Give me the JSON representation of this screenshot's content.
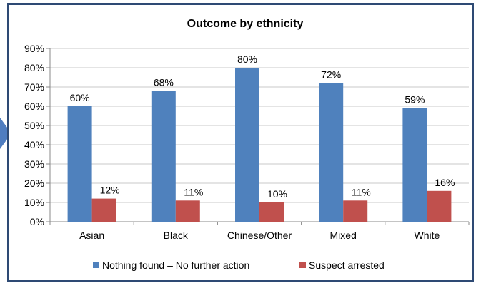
{
  "chart_data": {
    "type": "bar",
    "title": "Outcome by ethnicity",
    "xlabel": "",
    "ylabel": "",
    "categories": [
      "Asian",
      "Black",
      "Chinese/Other",
      "Mixed",
      "White"
    ],
    "series": [
      {
        "name": "Nothing found – No further action",
        "values": [
          60,
          68,
          80,
          72,
          59
        ],
        "color": "#4f81bd",
        "labels": [
          "60%",
          "68%",
          "80%",
          "72%",
          "59%"
        ]
      },
      {
        "name": "Suspect arrested",
        "values": [
          12,
          11,
          10,
          11,
          16
        ],
        "color": "#c0504d",
        "labels": [
          "12%",
          "11%",
          "10%",
          "11%",
          "16%"
        ]
      }
    ],
    "ylim": [
      0,
      90
    ],
    "yticks": [
      "0%",
      "10%",
      "20%",
      "30%",
      "40%",
      "50%",
      "60%",
      "70%",
      "80%",
      "90%"
    ],
    "grid": true,
    "legend": "bottom"
  }
}
